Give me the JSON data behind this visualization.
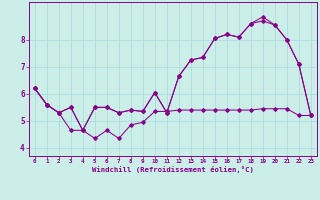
{
  "xlabel": "Windchill (Refroidissement éolien,°C)",
  "background_color": "#cceee8",
  "grid_color": "#aadddd",
  "line_color": "#880088",
  "x_ticks": [
    0,
    1,
    2,
    3,
    4,
    5,
    6,
    7,
    8,
    9,
    10,
    11,
    12,
    13,
    14,
    15,
    16,
    17,
    18,
    19,
    20,
    21,
    22,
    23
  ],
  "xlim": [
    -0.5,
    23.5
  ],
  "ylim": [
    3.7,
    9.4
  ],
  "y_ticks": [
    4,
    5,
    6,
    7,
    8
  ],
  "line1_x": [
    0,
    1,
    2,
    3,
    4,
    5,
    6,
    7,
    8,
    9,
    10,
    11,
    12,
    13,
    14,
    15,
    16,
    17,
    18,
    19,
    20,
    21,
    22,
    23
  ],
  "line1_y": [
    6.2,
    5.6,
    5.3,
    5.5,
    4.65,
    5.5,
    5.5,
    5.3,
    5.4,
    5.35,
    6.05,
    5.3,
    6.65,
    7.25,
    7.35,
    8.05,
    8.2,
    8.1,
    8.6,
    8.7,
    8.55,
    8.0,
    7.1,
    5.2
  ],
  "line2_x": [
    0,
    1,
    2,
    3,
    4,
    5,
    6,
    7,
    8,
    9,
    10,
    11,
    12,
    13,
    14,
    15,
    16,
    17,
    18,
    19,
    20,
    21,
    22,
    23
  ],
  "line2_y": [
    6.2,
    5.6,
    5.3,
    4.65,
    4.65,
    4.35,
    4.65,
    4.35,
    4.85,
    4.95,
    5.35,
    5.35,
    5.4,
    5.4,
    5.4,
    5.4,
    5.4,
    5.4,
    5.4,
    5.45,
    5.45,
    5.45,
    5.2,
    5.2
  ],
  "line3_x": [
    0,
    1,
    2,
    3,
    4,
    5,
    6,
    7,
    8,
    9,
    10,
    11,
    12,
    13,
    14,
    15,
    16,
    17,
    18,
    19,
    20,
    21,
    22,
    23
  ],
  "line3_y": [
    6.2,
    5.6,
    5.3,
    5.5,
    4.65,
    5.5,
    5.5,
    5.3,
    5.4,
    5.35,
    6.05,
    5.3,
    6.65,
    7.25,
    7.35,
    8.05,
    8.2,
    8.1,
    8.6,
    8.85,
    8.55,
    8.0,
    7.1,
    5.2
  ]
}
